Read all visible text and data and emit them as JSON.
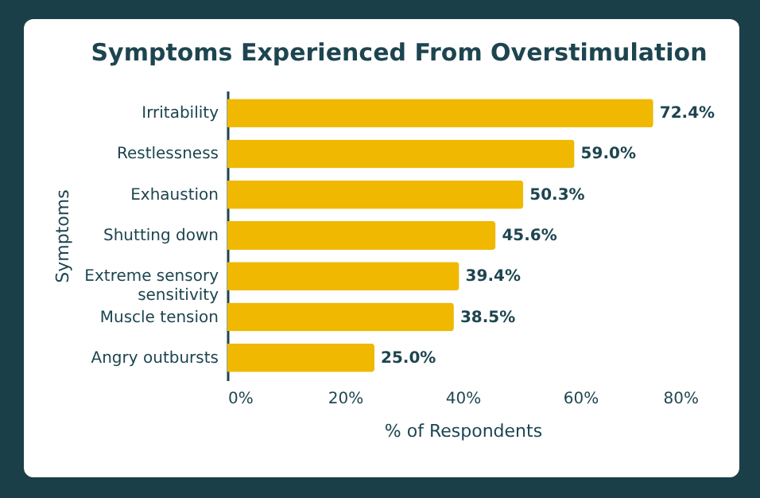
{
  "chart_data": {
    "type": "bar",
    "orientation": "horizontal",
    "title": "Symptoms Experienced From Overstimulation",
    "xlabel": "% of Respondents",
    "ylabel": "Symptoms",
    "categories": [
      "Irritability",
      "Restlessness",
      "Exhaustion",
      "Shutting down",
      "Extreme sensory sensitivity",
      "Muscle tension",
      "Angry outbursts"
    ],
    "values": [
      72.4,
      59.0,
      50.3,
      45.6,
      39.4,
      38.5,
      25.0
    ],
    "value_labels": [
      "72.4%",
      "59.0%",
      "50.3%",
      "45.6%",
      "39.4%",
      "38.5%",
      "25.0%"
    ],
    "color": "#f0b800",
    "xlim": [
      0,
      80
    ],
    "xticks": [
      {
        "value": 0,
        "label": "0%"
      },
      {
        "value": 20,
        "label": "20%"
      },
      {
        "value": 40,
        "label": "40%"
      },
      {
        "value": 60,
        "label": "60%"
      },
      {
        "value": 80,
        "label": "80%"
      }
    ]
  }
}
